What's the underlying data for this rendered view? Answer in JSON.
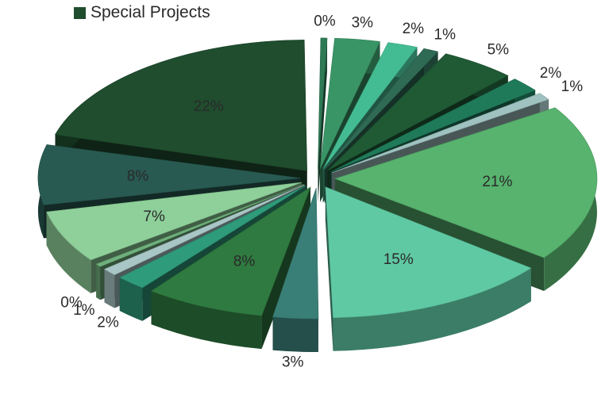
{
  "chart_data": {
    "type": "pie",
    "title": "",
    "exploded": true,
    "three_d": true,
    "legend": {
      "position": "top-left",
      "entries": [
        {
          "name": "Special Projects",
          "color": "#1f4d2e"
        }
      ]
    },
    "slices": [
      {
        "label": "0%",
        "value": 0,
        "color": "#2f7a56"
      },
      {
        "label": "3%",
        "value": 3,
        "color": "#3a9566"
      },
      {
        "label": "2%",
        "value": 2,
        "color": "#44bc93"
      },
      {
        "label": "1%",
        "value": 1,
        "color": "#2f6a55"
      },
      {
        "label": "5%",
        "value": 5,
        "color": "#1f5a35"
      },
      {
        "label": "2%",
        "value": 2,
        "color": "#1f7a5a"
      },
      {
        "label": "1%",
        "value": 1,
        "color": "#9fc2c0"
      },
      {
        "label": "21%",
        "value": 21,
        "color": "#57b36e"
      },
      {
        "label": "15%",
        "value": 15,
        "color": "#5fc9a4"
      },
      {
        "label": "3%",
        "value": 3,
        "color": "#3a7f77"
      },
      {
        "label": "8%",
        "value": 8,
        "color": "#2f7a40"
      },
      {
        "label": "2%",
        "value": 2,
        "color": "#2e9b7a"
      },
      {
        "label": "1%",
        "value": 1,
        "color": "#a9c6c6"
      },
      {
        "label": "0%",
        "value": 0,
        "color": "#6fb07c"
      },
      {
        "label": "7%",
        "value": 7,
        "color": "#8fd09a"
      },
      {
        "label": "8%",
        "value": 8,
        "color": "#285a52"
      },
      {
        "label": "22%",
        "value": 22,
        "color": "#1f4d2e"
      }
    ]
  }
}
